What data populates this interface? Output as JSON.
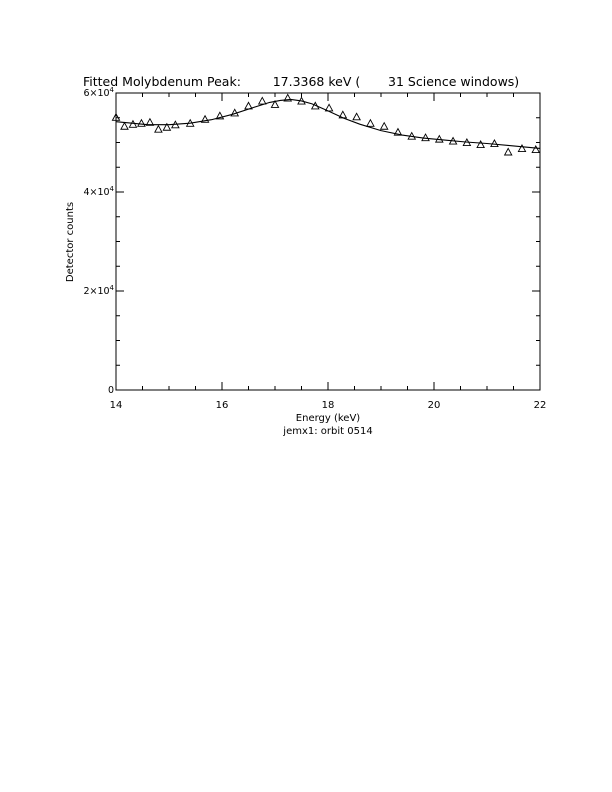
{
  "chart_data": {
    "type": "scatter",
    "title": "Fitted Molybdenum Peak:        17.3368 keV (       31 Science windows)",
    "xlabel": "Energy (keV)",
    "ylabel": "Detector counts",
    "subtitle": "jemx1: orbit 0514",
    "xlim": [
      14,
      22
    ],
    "ylim": [
      0,
      60000
    ],
    "x_ticks": [
      {
        "value": 14,
        "label": "14"
      },
      {
        "value": 16,
        "label": "16"
      },
      {
        "value": 18,
        "label": "18"
      },
      {
        "value": 20,
        "label": "20"
      },
      {
        "value": 22,
        "label": "22"
      }
    ],
    "y_ticks": [
      {
        "value": 0,
        "mant": "0",
        "exp": ""
      },
      {
        "value": 20000,
        "mant": "2×10",
        "exp": "4"
      },
      {
        "value": 40000,
        "mant": "4×10",
        "exp": "4"
      },
      {
        "value": 60000,
        "mant": "6×10",
        "exp": "4"
      }
    ],
    "grid": false,
    "series": [
      {
        "marker": "triangle",
        "x": [
          14.0,
          14.16,
          14.32,
          14.48,
          14.64,
          14.8,
          14.96,
          15.12,
          15.4,
          15.68,
          15.96,
          16.24,
          16.5,
          16.76,
          17.0,
          17.24,
          17.5,
          17.76,
          18.02,
          18.28,
          18.54,
          18.8,
          19.06,
          19.32,
          19.58,
          19.84,
          20.1,
          20.36,
          20.62,
          20.88,
          21.14,
          21.4,
          21.66,
          21.92
        ],
        "y": [
          55000,
          53200,
          53600,
          53800,
          54000,
          52600,
          53000,
          53500,
          53800,
          54600,
          55300,
          55900,
          57300,
          58300,
          57600,
          58900,
          58300,
          57300,
          56900,
          55500,
          55100,
          53800,
          53200,
          52000,
          51200,
          50900,
          50600,
          50200,
          49900,
          49500,
          49700,
          48000,
          48700,
          48500
        ]
      },
      {
        "marker": "line",
        "x": [
          14.0,
          14.3,
          14.6,
          15.0,
          15.4,
          15.8,
          16.2,
          16.6,
          16.9,
          17.1,
          17.3,
          17.5,
          17.7,
          18.0,
          18.3,
          18.6,
          19.0,
          19.4,
          19.8,
          20.2,
          20.6,
          21.0,
          21.4,
          21.8,
          22.0
        ],
        "y": [
          54200,
          53900,
          53600,
          53600,
          53900,
          54600,
          55700,
          57100,
          58100,
          58500,
          58700,
          58400,
          57800,
          56400,
          54900,
          53700,
          52400,
          51500,
          50900,
          50500,
          50100,
          49800,
          49400,
          49000,
          48800
        ]
      }
    ]
  }
}
